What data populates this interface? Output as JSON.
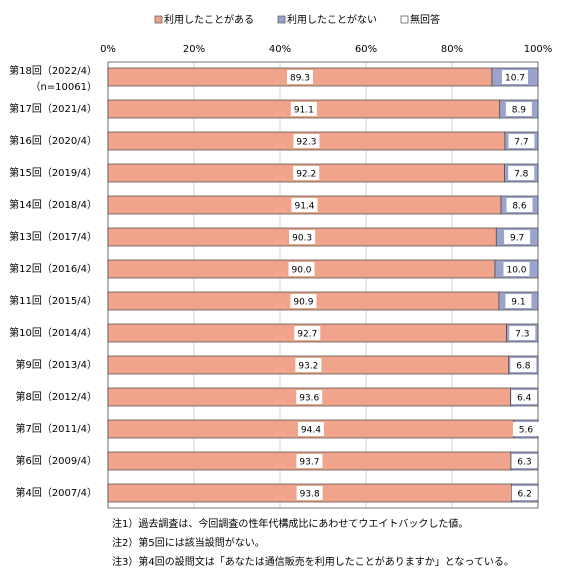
{
  "chart_data": {
    "type": "stacked_bar_horizontal",
    "categories": [
      "第18回（2022/4）",
      "第17回（2021/4）",
      "第16回（2020/4）",
      "第15回（2019/4）",
      "第14回（2018/4）",
      "第13回（2017/4）",
      "第12回（2016/4）",
      "第11回（2015/4）",
      "第10回（2014/4）",
      "第9回（2013/4）",
      "第8回（2012/4）",
      "第7回（2011/4）",
      "第6回（2009/4）",
      "第4回（2007/4）"
    ],
    "sample_size_label": "（n=10061）",
    "series": [
      {
        "name": "利用したことがある",
        "color": "#f0a48b",
        "values": [
          89.3,
          91.1,
          92.3,
          92.2,
          91.4,
          90.3,
          90.0,
          90.9,
          92.7,
          93.2,
          93.6,
          94.4,
          93.7,
          93.8
        ],
        "value_labels": [
          "89.3",
          "91.1",
          "92.3",
          "92.2",
          "91.4",
          "90.3",
          "90.0",
          "90.9",
          "92.7",
          "93.2",
          "93.6",
          "94.4",
          "93.7",
          "93.8"
        ]
      },
      {
        "name": "利用したことがない",
        "color": "#9aa3cc",
        "values": [
          10.7,
          8.9,
          7.7,
          7.8,
          8.6,
          9.7,
          10.0,
          9.1,
          7.3,
          6.8,
          6.4,
          5.6,
          6.3,
          6.2
        ],
        "value_labels": [
          "10.7",
          "8.9",
          "7.7",
          "7.8",
          "8.6",
          "9.7",
          "10.0",
          "9.1",
          "7.3",
          "6.8",
          "6.4",
          "5.6",
          "6.3",
          "6.2"
        ]
      },
      {
        "name": "無回答",
        "color": "#ffffff",
        "values": [
          0,
          0,
          0,
          0,
          0,
          0,
          0,
          0,
          0,
          0,
          0,
          0,
          0,
          0
        ]
      }
    ],
    "xlim": [
      0,
      100
    ],
    "xticks": [
      {
        "value": 0,
        "label": "0%"
      },
      {
        "value": 20,
        "label": "20%"
      },
      {
        "value": 40,
        "label": "40%"
      },
      {
        "value": 60,
        "label": "60%"
      },
      {
        "value": 80,
        "label": "80%"
      },
      {
        "value": 100,
        "label": "100%"
      }
    ],
    "grid": true,
    "legend": "top",
    "notes": [
      "注1）過去調査は、今回調査の性年代構成比にあわせてウエイトバックした値。",
      "注2）第5回には該当設問がない。",
      "注3）第4回の設問文は「あなたは通信販売を利用したことがありますか」となっている。"
    ]
  }
}
